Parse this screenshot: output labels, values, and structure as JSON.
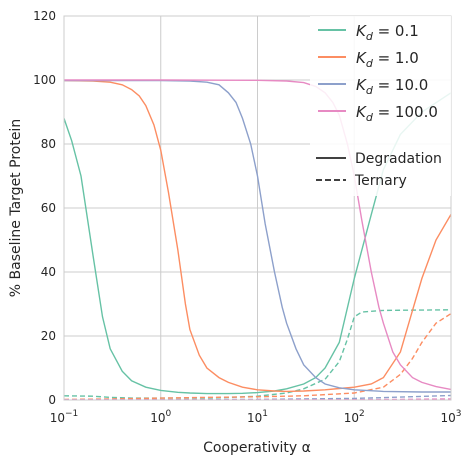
{
  "chart_data": {
    "type": "line",
    "xlabel": "Cooperativity α",
    "ylabel": "% Baseline Target Protein",
    "xscale": "log",
    "xlim": [
      0.1,
      1000
    ],
    "ylim": [
      0,
      120
    ],
    "x_ticks": [
      {
        "value": 0.1,
        "base": "10",
        "exp": "−1"
      },
      {
        "value": 1,
        "base": "10",
        "exp": "0"
      },
      {
        "value": 10,
        "base": "10",
        "exp": "1"
      },
      {
        "value": 100,
        "base": "10",
        "exp": "2"
      },
      {
        "value": 1000,
        "base": "10",
        "exp": "3"
      }
    ],
    "y_ticks": [
      0,
      20,
      40,
      60,
      80,
      100,
      120
    ],
    "grid": true,
    "legend_position": "top-right",
    "series": [
      {
        "name": "K_d = 0.1",
        "label_main": "K",
        "label_sub": "d",
        "label_value": " = 0.1",
        "color": "#66c2a5",
        "degradation": [
          [
            0.1,
            88
          ],
          [
            0.12,
            81
          ],
          [
            0.15,
            70
          ],
          [
            0.2,
            45
          ],
          [
            0.25,
            26
          ],
          [
            0.3,
            16
          ],
          [
            0.4,
            9
          ],
          [
            0.5,
            6
          ],
          [
            0.7,
            4
          ],
          [
            1,
            3
          ],
          [
            1.5,
            2.4
          ],
          [
            2,
            2.2
          ],
          [
            3,
            2
          ],
          [
            5,
            2
          ],
          [
            7,
            2.1
          ],
          [
            10,
            2.3
          ],
          [
            15,
            2.8
          ],
          [
            20,
            3.5
          ],
          [
            30,
            5
          ],
          [
            40,
            7
          ],
          [
            50,
            10
          ],
          [
            70,
            18
          ],
          [
            100,
            38
          ],
          [
            150,
            58
          ],
          [
            200,
            72
          ],
          [
            300,
            83
          ],
          [
            500,
            90
          ],
          [
            1000,
            96
          ]
        ],
        "ternary": [
          [
            0.1,
            1.3
          ],
          [
            0.2,
            1.2
          ],
          [
            0.3,
            0.8
          ],
          [
            0.5,
            0.6
          ],
          [
            1,
            0.6
          ],
          [
            3,
            0.6
          ],
          [
            5,
            0.8
          ],
          [
            10,
            1.2
          ],
          [
            20,
            2.2
          ],
          [
            30,
            3.5
          ],
          [
            50,
            6.5
          ],
          [
            70,
            12
          ],
          [
            85,
            19
          ],
          [
            100,
            26
          ],
          [
            120,
            27.5
          ],
          [
            200,
            28
          ],
          [
            1000,
            28.2
          ]
        ]
      },
      {
        "name": "K_d = 1.0",
        "label_main": "K",
        "label_sub": "d",
        "label_value": " = 1.0",
        "color": "#fc8d62",
        "degradation": [
          [
            0.1,
            99.8
          ],
          [
            0.2,
            99.7
          ],
          [
            0.3,
            99.3
          ],
          [
            0.4,
            98.5
          ],
          [
            0.5,
            97
          ],
          [
            0.6,
            95
          ],
          [
            0.7,
            92
          ],
          [
            0.85,
            86
          ],
          [
            1,
            78
          ],
          [
            1.2,
            65
          ],
          [
            1.5,
            47
          ],
          [
            1.8,
            30
          ],
          [
            2,
            22
          ],
          [
            2.5,
            14
          ],
          [
            3,
            10
          ],
          [
            4,
            7
          ],
          [
            5,
            5.5
          ],
          [
            7,
            4
          ],
          [
            10,
            3.2
          ],
          [
            15,
            2.8
          ],
          [
            20,
            2.7
          ],
          [
            30,
            2.8
          ],
          [
            50,
            3.2
          ],
          [
            70,
            3.6
          ],
          [
            100,
            4
          ],
          [
            150,
            5
          ],
          [
            200,
            7
          ],
          [
            300,
            15
          ],
          [
            400,
            28
          ],
          [
            500,
            38
          ],
          [
            700,
            50
          ],
          [
            1000,
            58
          ]
        ],
        "ternary": [
          [
            0.1,
            0.2
          ],
          [
            0.3,
            0.3
          ],
          [
            1,
            0.6
          ],
          [
            3,
            0.8
          ],
          [
            10,
            1
          ],
          [
            30,
            1.3
          ],
          [
            100,
            2.2
          ],
          [
            200,
            4
          ],
          [
            300,
            8
          ],
          [
            400,
            13
          ],
          [
            500,
            18
          ],
          [
            700,
            24
          ],
          [
            1000,
            27
          ]
        ]
      },
      {
        "name": "K_d = 10.0",
        "label_main": "K",
        "label_sub": "d",
        "label_value": " = 10.0",
        "color": "#8da0cb",
        "degradation": [
          [
            0.1,
            99.8
          ],
          [
            1,
            99.8
          ],
          [
            2,
            99.7
          ],
          [
            3,
            99.3
          ],
          [
            4,
            98.5
          ],
          [
            5,
            96
          ],
          [
            6,
            93
          ],
          [
            7,
            88
          ],
          [
            8.5,
            80
          ],
          [
            10,
            70
          ],
          [
            12,
            55
          ],
          [
            15,
            40
          ],
          [
            18,
            29
          ],
          [
            20,
            24
          ],
          [
            25,
            16
          ],
          [
            30,
            11
          ],
          [
            40,
            7
          ],
          [
            50,
            5
          ],
          [
            70,
            3.8
          ],
          [
            100,
            3.2
          ],
          [
            200,
            2.7
          ],
          [
            500,
            2.5
          ],
          [
            1000,
            2.5
          ]
        ],
        "ternary": [
          [
            0.1,
            0.1
          ],
          [
            1,
            0.1
          ],
          [
            10,
            0.2
          ],
          [
            100,
            0.5
          ],
          [
            300,
            0.9
          ],
          [
            1000,
            1.4
          ]
        ]
      },
      {
        "name": "K_d = 100.0",
        "label_main": "K",
        "label_sub": "d",
        "label_value": " = 100.0",
        "color": "#e78ac3",
        "degradation": [
          [
            0.1,
            100
          ],
          [
            1,
            100
          ],
          [
            10,
            99.9
          ],
          [
            20,
            99.7
          ],
          [
            30,
            99.2
          ],
          [
            40,
            98
          ],
          [
            50,
            96
          ],
          [
            60,
            93
          ],
          [
            70,
            89
          ],
          [
            85,
            80
          ],
          [
            100,
            70
          ],
          [
            120,
            56
          ],
          [
            150,
            40
          ],
          [
            180,
            29
          ],
          [
            200,
            24
          ],
          [
            250,
            15
          ],
          [
            300,
            11
          ],
          [
            400,
            7
          ],
          [
            500,
            5.5
          ],
          [
            700,
            4.2
          ],
          [
            1000,
            3.3
          ]
        ],
        "ternary": [
          [
            0.1,
            0.05
          ],
          [
            10,
            0.05
          ],
          [
            100,
            0.1
          ],
          [
            300,
            0.2
          ],
          [
            1000,
            0.35
          ]
        ]
      }
    ],
    "style_legend": [
      {
        "label": "Degradation",
        "dash": "solid"
      },
      {
        "label": "Ternary",
        "dash": "dashed"
      }
    ]
  }
}
